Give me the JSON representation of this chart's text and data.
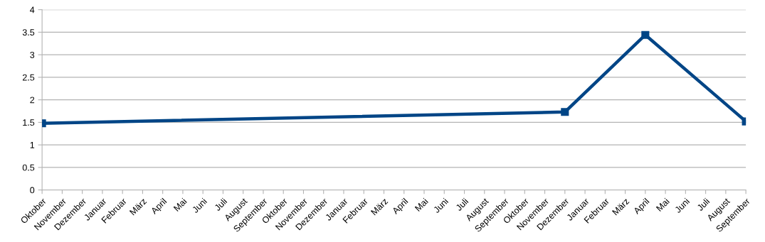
{
  "chart_data": {
    "type": "line",
    "categories": [
      "Oktober",
      "November",
      "Dezember",
      "Januar",
      "Februar",
      "März",
      "April",
      "Mai",
      "Juni",
      "Juli",
      "August",
      "September",
      "Oktober",
      "November",
      "Dezember",
      "Januar",
      "Februar",
      "März",
      "April",
      "Mai",
      "Juni",
      "Juli",
      "August",
      "September",
      "Oktober",
      "November",
      "Dezember",
      "Januar",
      "Februar",
      "März",
      "April",
      "Mai",
      "Juni",
      "Juli",
      "August",
      "September"
    ],
    "series": [
      {
        "color": "#004586",
        "values": [
          1.48,
          null,
          null,
          null,
          null,
          null,
          null,
          null,
          null,
          null,
          null,
          null,
          null,
          null,
          null,
          null,
          null,
          null,
          null,
          null,
          null,
          null,
          null,
          null,
          null,
          null,
          1.73,
          null,
          null,
          null,
          3.44,
          null,
          null,
          null,
          null,
          1.52
        ]
      }
    ],
    "ylim": [
      0,
      4
    ],
    "yticks": [
      0,
      0.5,
      1,
      1.5,
      2,
      2.5,
      3,
      3.5,
      4
    ],
    "grid": "y",
    "marker": "square",
    "line_style": "solid"
  }
}
